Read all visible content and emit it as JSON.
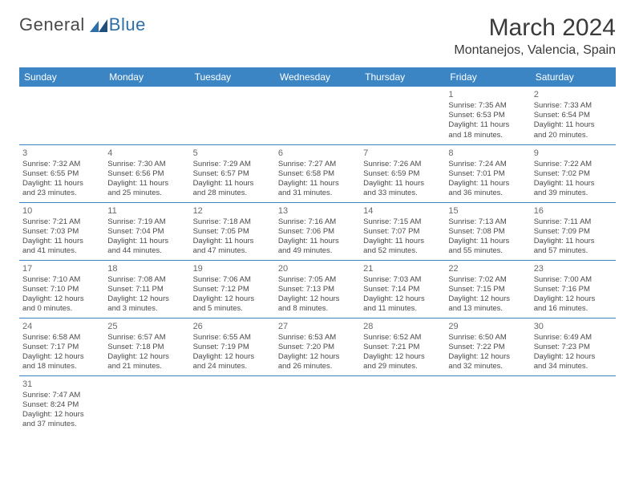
{
  "brand": {
    "part1": "General",
    "part2": "Blue"
  },
  "title": "March 2024",
  "location": "Montanejos, Valencia, Spain",
  "colors": {
    "header_bg": "#3b85c4",
    "header_text": "#ffffff",
    "brand_accent": "#2f6fa8",
    "body_text": "#4a4a4a",
    "rule": "#3b85c4",
    "page_bg": "#ffffff"
  },
  "typography": {
    "month_title_fontsize": 30,
    "location_fontsize": 16,
    "dayheader_fontsize": 12,
    "cell_fontsize": 9.5,
    "daynum_fontsize": 11
  },
  "weekdays": [
    "Sunday",
    "Monday",
    "Tuesday",
    "Wednesday",
    "Thursday",
    "Friday",
    "Saturday"
  ],
  "weeks": [
    [
      null,
      null,
      null,
      null,
      null,
      {
        "n": "1",
        "sr": "Sunrise: 7:35 AM",
        "ss": "Sunset: 6:53 PM",
        "dl1": "Daylight: 11 hours",
        "dl2": "and 18 minutes."
      },
      {
        "n": "2",
        "sr": "Sunrise: 7:33 AM",
        "ss": "Sunset: 6:54 PM",
        "dl1": "Daylight: 11 hours",
        "dl2": "and 20 minutes."
      }
    ],
    [
      {
        "n": "3",
        "sr": "Sunrise: 7:32 AM",
        "ss": "Sunset: 6:55 PM",
        "dl1": "Daylight: 11 hours",
        "dl2": "and 23 minutes."
      },
      {
        "n": "4",
        "sr": "Sunrise: 7:30 AM",
        "ss": "Sunset: 6:56 PM",
        "dl1": "Daylight: 11 hours",
        "dl2": "and 25 minutes."
      },
      {
        "n": "5",
        "sr": "Sunrise: 7:29 AM",
        "ss": "Sunset: 6:57 PM",
        "dl1": "Daylight: 11 hours",
        "dl2": "and 28 minutes."
      },
      {
        "n": "6",
        "sr": "Sunrise: 7:27 AM",
        "ss": "Sunset: 6:58 PM",
        "dl1": "Daylight: 11 hours",
        "dl2": "and 31 minutes."
      },
      {
        "n": "7",
        "sr": "Sunrise: 7:26 AM",
        "ss": "Sunset: 6:59 PM",
        "dl1": "Daylight: 11 hours",
        "dl2": "and 33 minutes."
      },
      {
        "n": "8",
        "sr": "Sunrise: 7:24 AM",
        "ss": "Sunset: 7:01 PM",
        "dl1": "Daylight: 11 hours",
        "dl2": "and 36 minutes."
      },
      {
        "n": "9",
        "sr": "Sunrise: 7:22 AM",
        "ss": "Sunset: 7:02 PM",
        "dl1": "Daylight: 11 hours",
        "dl2": "and 39 minutes."
      }
    ],
    [
      {
        "n": "10",
        "sr": "Sunrise: 7:21 AM",
        "ss": "Sunset: 7:03 PM",
        "dl1": "Daylight: 11 hours",
        "dl2": "and 41 minutes."
      },
      {
        "n": "11",
        "sr": "Sunrise: 7:19 AM",
        "ss": "Sunset: 7:04 PM",
        "dl1": "Daylight: 11 hours",
        "dl2": "and 44 minutes."
      },
      {
        "n": "12",
        "sr": "Sunrise: 7:18 AM",
        "ss": "Sunset: 7:05 PM",
        "dl1": "Daylight: 11 hours",
        "dl2": "and 47 minutes."
      },
      {
        "n": "13",
        "sr": "Sunrise: 7:16 AM",
        "ss": "Sunset: 7:06 PM",
        "dl1": "Daylight: 11 hours",
        "dl2": "and 49 minutes."
      },
      {
        "n": "14",
        "sr": "Sunrise: 7:15 AM",
        "ss": "Sunset: 7:07 PM",
        "dl1": "Daylight: 11 hours",
        "dl2": "and 52 minutes."
      },
      {
        "n": "15",
        "sr": "Sunrise: 7:13 AM",
        "ss": "Sunset: 7:08 PM",
        "dl1": "Daylight: 11 hours",
        "dl2": "and 55 minutes."
      },
      {
        "n": "16",
        "sr": "Sunrise: 7:11 AM",
        "ss": "Sunset: 7:09 PM",
        "dl1": "Daylight: 11 hours",
        "dl2": "and 57 minutes."
      }
    ],
    [
      {
        "n": "17",
        "sr": "Sunrise: 7:10 AM",
        "ss": "Sunset: 7:10 PM",
        "dl1": "Daylight: 12 hours",
        "dl2": "and 0 minutes."
      },
      {
        "n": "18",
        "sr": "Sunrise: 7:08 AM",
        "ss": "Sunset: 7:11 PM",
        "dl1": "Daylight: 12 hours",
        "dl2": "and 3 minutes."
      },
      {
        "n": "19",
        "sr": "Sunrise: 7:06 AM",
        "ss": "Sunset: 7:12 PM",
        "dl1": "Daylight: 12 hours",
        "dl2": "and 5 minutes."
      },
      {
        "n": "20",
        "sr": "Sunrise: 7:05 AM",
        "ss": "Sunset: 7:13 PM",
        "dl1": "Daylight: 12 hours",
        "dl2": "and 8 minutes."
      },
      {
        "n": "21",
        "sr": "Sunrise: 7:03 AM",
        "ss": "Sunset: 7:14 PM",
        "dl1": "Daylight: 12 hours",
        "dl2": "and 11 minutes."
      },
      {
        "n": "22",
        "sr": "Sunrise: 7:02 AM",
        "ss": "Sunset: 7:15 PM",
        "dl1": "Daylight: 12 hours",
        "dl2": "and 13 minutes."
      },
      {
        "n": "23",
        "sr": "Sunrise: 7:00 AM",
        "ss": "Sunset: 7:16 PM",
        "dl1": "Daylight: 12 hours",
        "dl2": "and 16 minutes."
      }
    ],
    [
      {
        "n": "24",
        "sr": "Sunrise: 6:58 AM",
        "ss": "Sunset: 7:17 PM",
        "dl1": "Daylight: 12 hours",
        "dl2": "and 18 minutes."
      },
      {
        "n": "25",
        "sr": "Sunrise: 6:57 AM",
        "ss": "Sunset: 7:18 PM",
        "dl1": "Daylight: 12 hours",
        "dl2": "and 21 minutes."
      },
      {
        "n": "26",
        "sr": "Sunrise: 6:55 AM",
        "ss": "Sunset: 7:19 PM",
        "dl1": "Daylight: 12 hours",
        "dl2": "and 24 minutes."
      },
      {
        "n": "27",
        "sr": "Sunrise: 6:53 AM",
        "ss": "Sunset: 7:20 PM",
        "dl1": "Daylight: 12 hours",
        "dl2": "and 26 minutes."
      },
      {
        "n": "28",
        "sr": "Sunrise: 6:52 AM",
        "ss": "Sunset: 7:21 PM",
        "dl1": "Daylight: 12 hours",
        "dl2": "and 29 minutes."
      },
      {
        "n": "29",
        "sr": "Sunrise: 6:50 AM",
        "ss": "Sunset: 7:22 PM",
        "dl1": "Daylight: 12 hours",
        "dl2": "and 32 minutes."
      },
      {
        "n": "30",
        "sr": "Sunrise: 6:49 AM",
        "ss": "Sunset: 7:23 PM",
        "dl1": "Daylight: 12 hours",
        "dl2": "and 34 minutes."
      }
    ],
    [
      {
        "n": "31",
        "sr": "Sunrise: 7:47 AM",
        "ss": "Sunset: 8:24 PM",
        "dl1": "Daylight: 12 hours",
        "dl2": "and 37 minutes."
      },
      null,
      null,
      null,
      null,
      null,
      null
    ]
  ]
}
